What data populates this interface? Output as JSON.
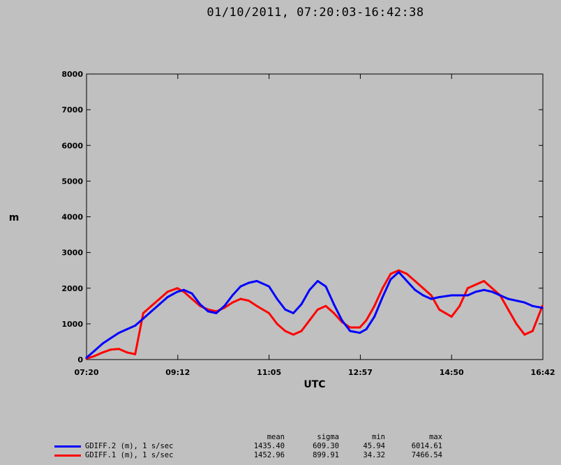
{
  "title": "01/10/2011, 07:20:03-16:42:38",
  "chart_data": {
    "type": "line",
    "title": "01/10/2011, 07:20:03-16:42:38",
    "xlabel": "UTC",
    "ylabel": "m",
    "x_ticks": [
      "07:20",
      "09:12",
      "11:05",
      "12:57",
      "14:50",
      "16:42"
    ],
    "y_ticks": [
      0,
      1000,
      2000,
      3000,
      4000,
      5000,
      6000,
      7000,
      8000
    ],
    "ylim": [
      0,
      8000
    ],
    "xlim": [
      "07:20:03",
      "16:42:38"
    ],
    "grid": false,
    "series": [
      {
        "name": "GDIFF.2 (m), 1 s/sec",
        "color": "#0000ff",
        "x": [
          "07:20",
          "07:30",
          "07:40",
          "07:50",
          "08:00",
          "08:10",
          "08:20",
          "08:30",
          "08:40",
          "08:50",
          "09:00",
          "09:12",
          "09:20",
          "09:30",
          "09:40",
          "09:50",
          "10:00",
          "10:10",
          "10:20",
          "10:30",
          "10:40",
          "10:50",
          "11:05",
          "11:15",
          "11:25",
          "11:35",
          "11:45",
          "11:55",
          "12:05",
          "12:15",
          "12:25",
          "12:35",
          "12:45",
          "12:57",
          "13:05",
          "13:15",
          "13:25",
          "13:35",
          "13:45",
          "13:55",
          "14:05",
          "14:15",
          "14:25",
          "14:35",
          "14:50",
          "15:00",
          "15:10",
          "15:20",
          "15:30",
          "15:40",
          "15:50",
          "16:00",
          "16:10",
          "16:20",
          "16:30",
          "16:42"
        ],
        "values": [
          50,
          250,
          450,
          600,
          750,
          850,
          950,
          1150,
          1350,
          1550,
          1750,
          1900,
          1950,
          1850,
          1550,
          1350,
          1300,
          1500,
          1800,
          2050,
          2150,
          2200,
          2050,
          1700,
          1400,
          1300,
          1550,
          1950,
          2200,
          2050,
          1550,
          1100,
          800,
          750,
          850,
          1200,
          1750,
          2250,
          2450,
          2200,
          1950,
          1800,
          1700,
          1750,
          1800,
          1800,
          1800,
          1900,
          1950,
          1900,
          1800,
          1700,
          1650,
          1600,
          1500,
          1450
        ]
      },
      {
        "name": "GDIFF.1 (m), 1 s/sec",
        "color": "#ff0000",
        "x": [
          "07:20",
          "07:30",
          "07:40",
          "07:50",
          "08:00",
          "08:10",
          "08:20",
          "08:30",
          "08:40",
          "08:50",
          "09:00",
          "09:12",
          "09:20",
          "09:30",
          "09:40",
          "09:50",
          "10:00",
          "10:10",
          "10:20",
          "10:30",
          "10:40",
          "10:50",
          "11:05",
          "11:15",
          "11:25",
          "11:35",
          "11:45",
          "11:55",
          "12:05",
          "12:15",
          "12:25",
          "12:35",
          "12:45",
          "12:57",
          "13:05",
          "13:15",
          "13:25",
          "13:35",
          "13:45",
          "13:55",
          "14:05",
          "14:15",
          "14:25",
          "14:35",
          "14:50",
          "15:00",
          "15:10",
          "15:20",
          "15:30",
          "15:40",
          "15:50",
          "16:00",
          "16:10",
          "16:20",
          "16:30",
          "16:42"
        ],
        "values": [
          30,
          100,
          200,
          280,
          300,
          200,
          150,
          1300,
          1500,
          1700,
          1900,
          2000,
          1900,
          1700,
          1500,
          1400,
          1350,
          1450,
          1600,
          1700,
          1650,
          1500,
          1300,
          1000,
          800,
          700,
          800,
          1100,
          1400,
          1500,
          1300,
          1050,
          900,
          900,
          1100,
          1500,
          2000,
          2400,
          2500,
          2400,
          2200,
          2000,
          1800,
          1400,
          1200,
          1500,
          2000,
          2100,
          2200,
          2000,
          1800,
          1400,
          1000,
          700,
          800,
          1500
        ]
      }
    ],
    "legend_position": "bottom-left",
    "stats_header": [
      "mean",
      "sigma",
      "min",
      "max"
    ],
    "stats": [
      {
        "name": "GDIFF.2 (m), 1 s/sec",
        "mean": "1435.40",
        "sigma": "609.30",
        "min": "45.94",
        "max": "6014.61"
      },
      {
        "name": "GDIFF.1 (m), 1 s/sec",
        "mean": "1452.96",
        "sigma": "899.91",
        "min": "34.32",
        "max": "7466.54"
      }
    ]
  }
}
